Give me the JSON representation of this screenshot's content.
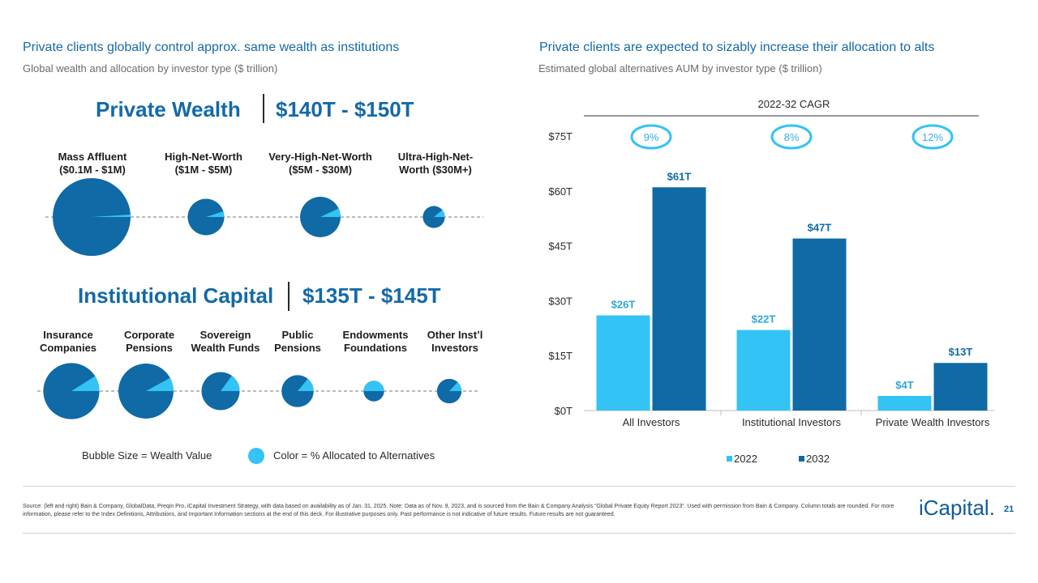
{
  "left": {
    "title": "Private clients globally control approx. same wealth as institutions",
    "subtitle": "Global wealth and allocation by investor type ($ trillion)",
    "private_wealth": {
      "label": "Private Wealth",
      "range": "$140T - $150T",
      "categories": [
        {
          "label": "Mass Affluent\n($0.1M - $1M)",
          "relative_wealth": 100,
          "alt_share": 0.01
        },
        {
          "label": "High-Net-Worth\n($1M - $5M)",
          "relative_wealth": 22,
          "alt_share": 0.05
        },
        {
          "label": "Very-High-Net-Worth\n($5M - $30M)",
          "relative_wealth": 27,
          "alt_share": 0.07
        },
        {
          "label": "Ultra-High-Net-\nWorth ($30M+)",
          "relative_wealth": 8,
          "alt_share": 0.11
        }
      ]
    },
    "institutional": {
      "label": "Institutional Capital",
      "range": "$135T - $145T",
      "categories": [
        {
          "label": "Insurance\nCompanies",
          "relative_wealth": 52,
          "alt_share": 0.09
        },
        {
          "label": "Corporate\nPensions",
          "relative_wealth": 50,
          "alt_share": 0.08
        },
        {
          "label": "Sovereign\nWealth Funds",
          "relative_wealth": 24,
          "alt_share": 0.15
        },
        {
          "label": "Public\nPensions",
          "relative_wealth": 17,
          "alt_share": 0.14
        },
        {
          "label": "Endowments\nFoundations",
          "relative_wealth": 7,
          "alt_share": 0.5
        },
        {
          "label": "Other Inst’l\nInvestors",
          "relative_wealth": 10,
          "alt_share": 0.13
        }
      ]
    },
    "legend": {
      "size": "Bubble Size = Wealth Value",
      "color": "Color = % Allocated to Alternatives"
    }
  },
  "right": {
    "title": "Private clients are expected to sizably increase their allocation to alts",
    "subtitle": "Estimated global alternatives AUM by investor type ($ trillion)"
  },
  "chart_data": {
    "type": "bar",
    "title": "Estimated global alternatives AUM by investor type ($ trillion)",
    "categories": [
      "All Investors",
      "Institutional Investors",
      "Private Wealth Investors"
    ],
    "series": [
      {
        "name": "2022",
        "values": [
          26,
          22,
          4
        ],
        "labels": [
          "$26T",
          "$22T",
          "$4T"
        ],
        "color": "#33c3f5"
      },
      {
        "name": "2032",
        "values": [
          61,
          47,
          13
        ],
        "labels": [
          "$61T",
          "$47T",
          "$13T"
        ],
        "color": "#0f6aa6"
      }
    ],
    "ylim": [
      0,
      75
    ],
    "yticks": [
      0,
      15,
      30,
      45,
      60,
      75
    ],
    "ytick_labels": [
      "$0T",
      "$15T",
      "$30T",
      "$45T",
      "$60T",
      "$75T"
    ],
    "cagr_title": "2022-32 CAGR",
    "cagr": [
      "9%",
      "8%",
      "12%"
    ],
    "legend_position": "bottom"
  },
  "colors": {
    "wealth": "#0f6aa6",
    "alternatives": "#33c3f5",
    "title_blue": "#1469a8"
  },
  "footer": {
    "source": "Source: (left and right) Bain & Company, GlobalData, Preqin Pro, iCapital Investment Strategy, with data based on availability as of Jan. 31, 2025. Note: Data as of Nov. 9, 2023, and is sourced from the Bain & Company Analysis “Global Private Equity Report 2023”. Used with permission from Bain & Company. Column totals are rounded. For more information, please refer to the Index Definitions, Attributions, and Important Information sections at the end of this deck. For illustrative purposes only. Past performance is not indicative of future results. Future results are not guaranteed.",
    "logo": "iCapital.",
    "page": "21"
  }
}
